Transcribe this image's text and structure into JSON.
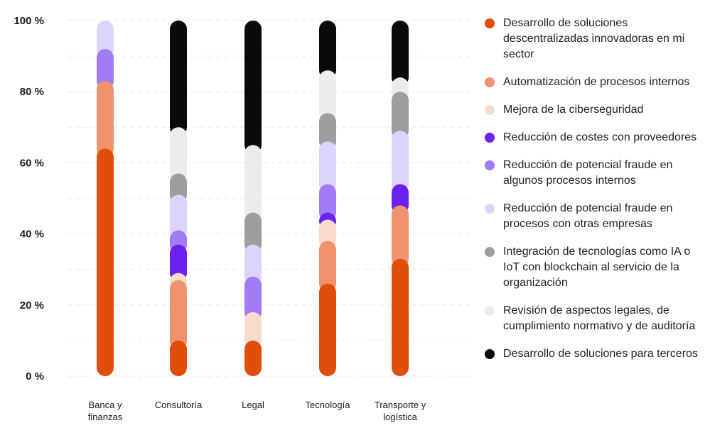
{
  "chart_data": {
    "type": "bar",
    "stacked": true,
    "categories": [
      "Banca y\nfinanzas",
      "Consultoría",
      "Legal",
      "Tecnología",
      "Transporte y\nlogística"
    ],
    "y_tick_labels": [
      "0 %",
      "20 %",
      "40 %",
      "60 %",
      "80 %",
      "100 %"
    ],
    "ylim": [
      0,
      100
    ],
    "grid": "horizontal dashed",
    "legend_position": "right",
    "series": [
      {
        "name": "Desarrollo de soluciones descentralizadas innovadoras en mi sector",
        "color": "#e04e0b",
        "values": [
          64,
          10,
          10,
          26,
          33
        ]
      },
      {
        "name": "Automatización de procesos internos",
        "color": "#ef926e",
        "values": [
          19,
          17,
          0,
          12,
          15
        ]
      },
      {
        "name": "Mejora de la ciberseguridad",
        "color": "#f8dccb",
        "values": [
          0,
          2,
          8,
          6,
          0
        ]
      },
      {
        "name": "Reducción de costes con proveedores",
        "color": "#6c22ec",
        "values": [
          0,
          8,
          0,
          2,
          6
        ]
      },
      {
        "name": "Reducción de potencial fraude en algunos procesos internos",
        "color": "#a27bf6",
        "values": [
          9,
          4,
          10,
          8,
          0
        ]
      },
      {
        "name": "Reducción de potencial fraude en procesos con otras empresas",
        "color": "#ddd4fd",
        "values": [
          8,
          10,
          9,
          12,
          15
        ]
      },
      {
        "name": "Integración de tecnologías como IA o IoT con blockchain al servicio de la organización",
        "color": "#9e9e9e",
        "values": [
          0,
          6,
          9,
          8,
          11
        ]
      },
      {
        "name": "Revisión de aspectos legales, de cumplimiento normativo y de auditoría",
        "color": "#ececec",
        "values": [
          0,
          13,
          19,
          12,
          4
        ]
      },
      {
        "name": "Desarrollo de soluciones para terceros",
        "color": "#0a0a0a",
        "values": [
          0,
          30,
          35,
          14,
          16
        ]
      }
    ]
  }
}
